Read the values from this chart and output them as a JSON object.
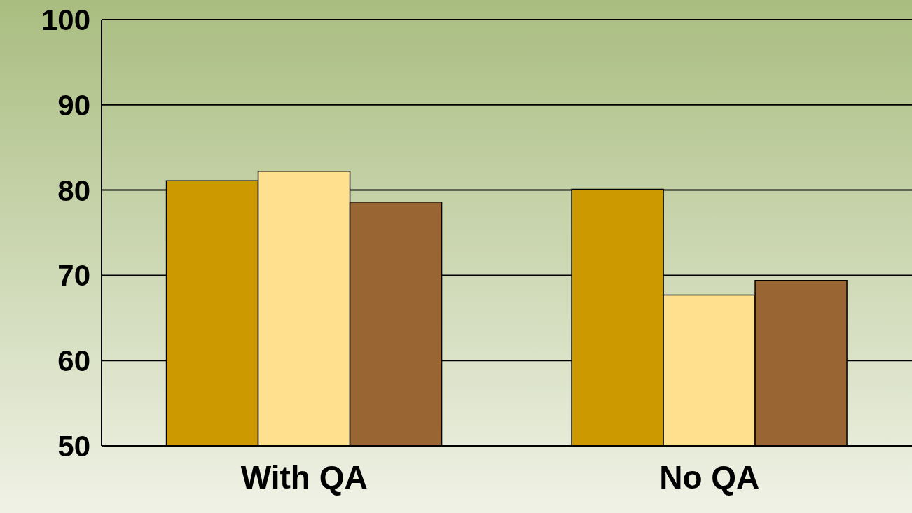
{
  "chart_data": {
    "type": "bar",
    "categories": [
      "With QA",
      "No QA"
    ],
    "series": [
      {
        "color": "#cc9900",
        "values": [
          81.1,
          80.1
        ]
      },
      {
        "color": "#ffe08f",
        "values": [
          82.2,
          67.7
        ]
      },
      {
        "color": "#996633",
        "values": [
          78.6,
          69.4
        ]
      }
    ],
    "ylim": [
      50,
      100
    ],
    "yticks": [
      50,
      60,
      70,
      80,
      90,
      100
    ],
    "grid": "y"
  }
}
